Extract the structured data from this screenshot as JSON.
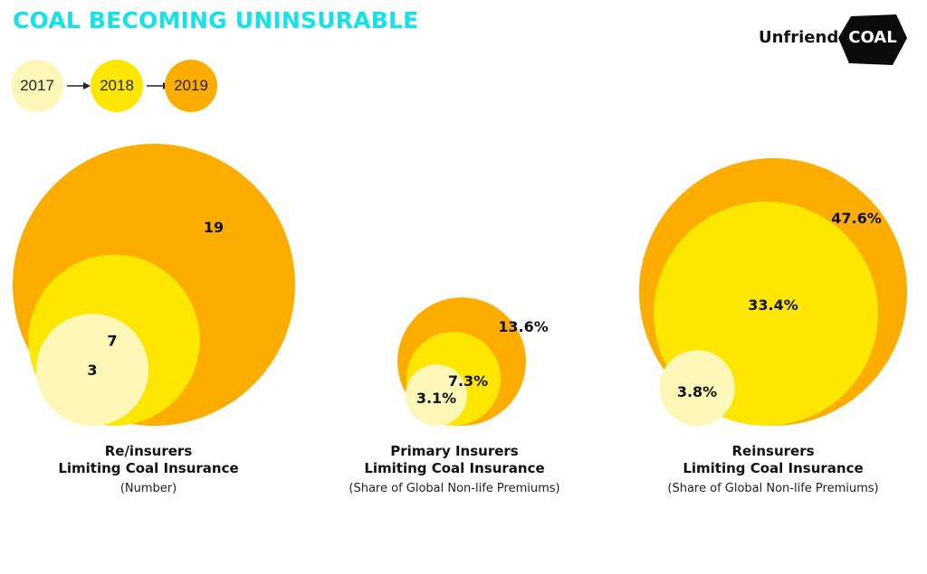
{
  "title": "COAL BECOMING UNINSURABLE",
  "logo": {
    "word": "Unfriend",
    "badge": "COAL"
  },
  "legend": [
    {
      "year": "2017",
      "color": "#fdf8b8"
    },
    {
      "year": "2018",
      "color": "#fde600"
    },
    {
      "year": "2019",
      "color": "#fdad00"
    }
  ],
  "chart_data": [
    {
      "type": "bubble",
      "title_line1": "Re/insurers",
      "title_line2": "Limiting Coal Insurance",
      "unit": "(Number)",
      "series": [
        {
          "name": "2017",
          "value": 3,
          "label": "3"
        },
        {
          "name": "2018",
          "value": 7,
          "label": "7"
        },
        {
          "name": "2019",
          "value": 19,
          "label": "19"
        }
      ]
    },
    {
      "type": "bubble",
      "title_line1": "Primary Insurers",
      "title_line2": "Limiting Coal Insurance",
      "unit": "(Share of Global Non-life Premiums)",
      "series": [
        {
          "name": "2017",
          "value": 3.1,
          "label": "3.1%"
        },
        {
          "name": "2018",
          "value": 7.3,
          "label": "7.3%"
        },
        {
          "name": "2019",
          "value": 13.6,
          "label": "13.6%"
        }
      ]
    },
    {
      "type": "bubble",
      "title_line1": "Reinsurers",
      "title_line2": "Limiting Coal Insurance",
      "unit": "(Share of Global Non-life Premiums)",
      "series": [
        {
          "name": "2017",
          "value": 3.8,
          "label": "3.8%"
        },
        {
          "name": "2018",
          "value": 33.4,
          "label": "33.4%"
        },
        {
          "name": "2019",
          "value": 47.6,
          "label": "47.6%"
        }
      ]
    }
  ]
}
